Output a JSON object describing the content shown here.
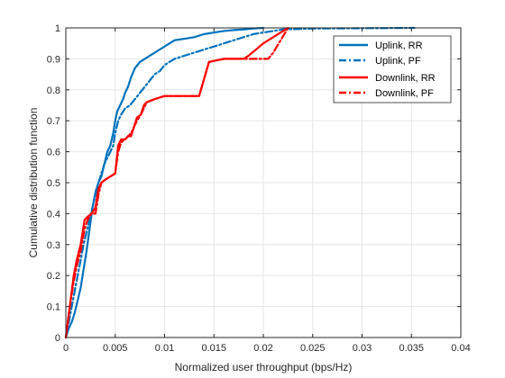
{
  "chart_data": {
    "type": "line",
    "title": "",
    "xlabel": "Normalized user throughput (bps/Hz)",
    "ylabel": "Cumulative distribution function",
    "xlim": [
      0,
      0.04
    ],
    "ylim": [
      0,
      1
    ],
    "xticks": [
      0,
      0.005,
      0.01,
      0.015,
      0.02,
      0.025,
      0.03,
      0.035,
      0.04
    ],
    "xtick_labels": [
      "0",
      "0.005",
      "0.01",
      "0.015",
      "0.02",
      "0.025",
      "0.03",
      "0.035",
      "0.04"
    ],
    "yticks": [
      0,
      0.1,
      0.2,
      0.3,
      0.4,
      0.5,
      0.6,
      0.7,
      0.8,
      0.9,
      1
    ],
    "ytick_labels": [
      "0",
      "0.1",
      "0.2",
      "0.3",
      "0.4",
      "0.5",
      "0.6",
      "0.7",
      "0.8",
      "0.9",
      "1"
    ],
    "grid": true,
    "legend_position": "top-right",
    "series": [
      {
        "name": "Uplink, RR",
        "color": "#0072BD",
        "dash": "solid",
        "x": [
          0,
          0.0003,
          0.0006,
          0.0009,
          0.0012,
          0.0015,
          0.0018,
          0.0021,
          0.0024,
          0.0027,
          0.003,
          0.0033,
          0.0036,
          0.0039,
          0.0042,
          0.0045,
          0.0048,
          0.005,
          0.0052,
          0.0055,
          0.0058,
          0.006,
          0.0063,
          0.0066,
          0.007,
          0.0075,
          0.008,
          0.0085,
          0.009,
          0.0095,
          0.01,
          0.0105,
          0.011,
          0.012,
          0.013,
          0.014,
          0.015,
          0.016,
          0.017,
          0.018,
          0.019,
          0.02
        ],
        "y": [
          0,
          0.03,
          0.05,
          0.08,
          0.12,
          0.16,
          0.22,
          0.28,
          0.35,
          0.42,
          0.47,
          0.5,
          0.52,
          0.56,
          0.6,
          0.62,
          0.66,
          0.7,
          0.73,
          0.75,
          0.77,
          0.79,
          0.81,
          0.84,
          0.87,
          0.89,
          0.9,
          0.91,
          0.92,
          0.93,
          0.94,
          0.95,
          0.96,
          0.965,
          0.97,
          0.98,
          0.985,
          0.99,
          0.993,
          0.995,
          0.998,
          1.0
        ]
      },
      {
        "name": "Uplink, PF",
        "color": "#0072BD",
        "dash": "dashdot",
        "x": [
          0,
          0.0003,
          0.0006,
          0.0009,
          0.0012,
          0.0015,
          0.0018,
          0.0021,
          0.0024,
          0.0027,
          0.003,
          0.0033,
          0.0036,
          0.0039,
          0.0042,
          0.0045,
          0.0048,
          0.005,
          0.0053,
          0.0056,
          0.006,
          0.0065,
          0.007,
          0.0075,
          0.008,
          0.0085,
          0.009,
          0.0095,
          0.01,
          0.0105,
          0.011,
          0.012,
          0.013,
          0.014,
          0.015,
          0.016,
          0.017,
          0.018,
          0.019,
          0.02,
          0.021,
          0.022,
          0.025,
          0.03,
          0.0353
        ],
        "y": [
          0,
          0.05,
          0.1,
          0.15,
          0.2,
          0.25,
          0.3,
          0.34,
          0.38,
          0.42,
          0.46,
          0.5,
          0.53,
          0.56,
          0.58,
          0.6,
          0.62,
          0.66,
          0.7,
          0.72,
          0.74,
          0.75,
          0.77,
          0.79,
          0.81,
          0.83,
          0.85,
          0.86,
          0.88,
          0.89,
          0.9,
          0.91,
          0.92,
          0.93,
          0.94,
          0.95,
          0.96,
          0.97,
          0.98,
          0.985,
          0.99,
          0.995,
          0.998,
          0.999,
          1.0
        ]
      },
      {
        "name": "Downlink, RR",
        "color": "#FF0000",
        "dash": "solid",
        "x": [
          0,
          0.0004,
          0.0008,
          0.0011,
          0.0015,
          0.0019,
          0.0022,
          0.0026,
          0.003,
          0.0033,
          0.0036,
          0.004,
          0.0045,
          0.005,
          0.0053,
          0.0056,
          0.006,
          0.0063,
          0.0066,
          0.0072,
          0.0076,
          0.0079,
          0.0082,
          0.009,
          0.01,
          0.011,
          0.012,
          0.0135,
          0.0145,
          0.016,
          0.017,
          0.018,
          0.0185,
          0.02,
          0.0225
        ],
        "y": [
          0,
          0.1,
          0.2,
          0.25,
          0.3,
          0.38,
          0.39,
          0.4,
          0.42,
          0.48,
          0.5,
          0.51,
          0.52,
          0.53,
          0.62,
          0.64,
          0.64,
          0.65,
          0.65,
          0.71,
          0.72,
          0.75,
          0.76,
          0.77,
          0.78,
          0.78,
          0.78,
          0.78,
          0.89,
          0.9,
          0.9,
          0.9,
          0.91,
          0.95,
          1.0
        ]
      },
      {
        "name": "Downlink, PF",
        "color": "#FF0000",
        "dash": "dashdot",
        "x": [
          0,
          0.0004,
          0.0008,
          0.0011,
          0.0015,
          0.0019,
          0.0022,
          0.0026,
          0.003,
          0.0033,
          0.0036,
          0.004,
          0.0045,
          0.005,
          0.0053,
          0.0056,
          0.006,
          0.0063,
          0.0066,
          0.0072,
          0.0076,
          0.0079,
          0.0082,
          0.009,
          0.01,
          0.011,
          0.012,
          0.0135,
          0.0145,
          0.016,
          0.017,
          0.018,
          0.019,
          0.0205,
          0.021,
          0.0225
        ],
        "y": [
          0,
          0.1,
          0.18,
          0.23,
          0.28,
          0.35,
          0.38,
          0.4,
          0.4,
          0.46,
          0.5,
          0.51,
          0.52,
          0.53,
          0.6,
          0.63,
          0.64,
          0.65,
          0.66,
          0.7,
          0.72,
          0.74,
          0.76,
          0.77,
          0.78,
          0.78,
          0.78,
          0.78,
          0.89,
          0.9,
          0.9,
          0.9,
          0.9,
          0.9,
          0.92,
          1.0
        ]
      }
    ]
  }
}
